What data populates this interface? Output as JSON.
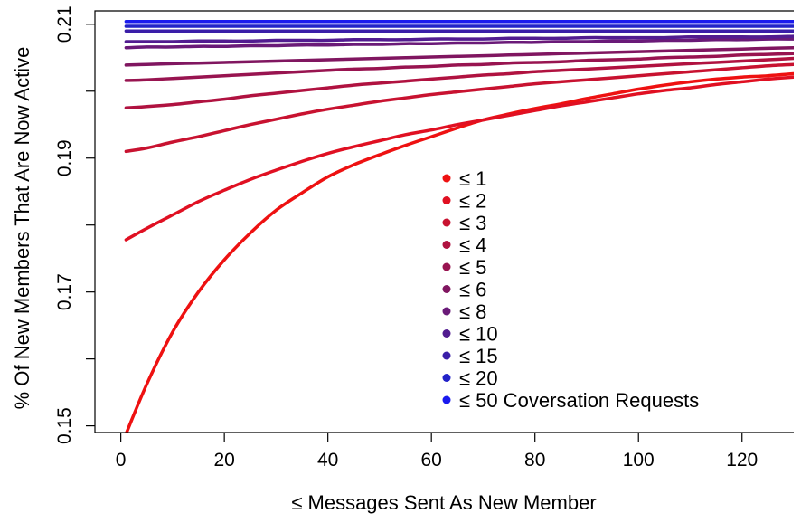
{
  "chart_data": {
    "type": "line",
    "xlabel": "≤ Messages Sent As New Member",
    "ylabel": "% Of New Members That Are Now Active",
    "xlim": [
      -5,
      130
    ],
    "ylim": [
      0.149,
      0.212
    ],
    "xticks": [
      "0",
      "20",
      "40",
      "60",
      "80",
      "100",
      "120"
    ],
    "yticks": [
      "0.15",
      "0.17",
      "0.19",
      "0.21"
    ],
    "grid": false,
    "legend_position": "center",
    "x": [
      1,
      5,
      10,
      15,
      20,
      25,
      30,
      35,
      40,
      45,
      50,
      55,
      60,
      65,
      70,
      75,
      80,
      85,
      90,
      95,
      100,
      105,
      110,
      115,
      120,
      125,
      130
    ],
    "series": [
      {
        "name": "≤ 1",
        "color": "#ee1111",
        "values": [
          0.1488,
          0.1562,
          0.164,
          0.17,
          0.1748,
          0.1788,
          0.1822,
          0.1848,
          0.1872,
          0.189,
          0.1905,
          0.1919,
          0.1932,
          0.1945,
          0.1957,
          0.1966,
          0.1974,
          0.1981,
          0.1989,
          0.1996,
          0.2003,
          0.2009,
          0.2014,
          0.2018,
          0.2021,
          0.2023,
          0.2026
        ]
      },
      {
        "name": "≤ 2",
        "color": "#e01022",
        "values": [
          0.1778,
          0.1795,
          0.1815,
          0.1835,
          0.1852,
          0.1868,
          0.1882,
          0.1895,
          0.1907,
          0.1917,
          0.1926,
          0.1935,
          0.1942,
          0.195,
          0.1957,
          0.1964,
          0.1971,
          0.1978,
          0.1984,
          0.199,
          0.1996,
          0.2001,
          0.2005,
          0.201,
          0.2014,
          0.2018,
          0.2021
        ]
      },
      {
        "name": "≤ 3",
        "color": "#c81230",
        "values": [
          0.191,
          0.1915,
          0.1924,
          0.1932,
          0.1941,
          0.195,
          0.1958,
          0.1966,
          0.1973,
          0.1979,
          0.1985,
          0.199,
          0.1995,
          0.1999,
          0.2003,
          0.2007,
          0.2011,
          0.2014,
          0.2017,
          0.202,
          0.2023,
          0.2026,
          0.2029,
          0.2032,
          0.2035,
          0.2038,
          0.204
        ]
      },
      {
        "name": "≤ 4",
        "color": "#b01240",
        "values": [
          0.1975,
          0.1977,
          0.198,
          0.1984,
          0.1988,
          0.1993,
          0.1997,
          0.2001,
          0.2005,
          0.2009,
          0.2012,
          0.2015,
          0.2018,
          0.2021,
          0.2024,
          0.2026,
          0.2029,
          0.2031,
          0.2033,
          0.2035,
          0.2037,
          0.2039,
          0.2041,
          0.2043,
          0.2045,
          0.2047,
          0.2049
        ]
      },
      {
        "name": "≤ 5",
        "color": "#981450",
        "values": [
          0.2016,
          0.2017,
          0.2019,
          0.2021,
          0.2023,
          0.2025,
          0.2027,
          0.2029,
          0.2031,
          0.2033,
          0.2034,
          0.2036,
          0.2037,
          0.2039,
          0.204,
          0.2042,
          0.2043,
          0.2044,
          0.2046,
          0.2047,
          0.2048,
          0.205,
          0.2051,
          0.2052,
          0.2054,
          0.2055,
          0.2056
        ]
      },
      {
        "name": "≤ 6",
        "color": "#801660",
        "values": [
          0.2039,
          0.204,
          0.2041,
          0.2042,
          0.2043,
          0.2044,
          0.2045,
          0.2046,
          0.2047,
          0.2048,
          0.2049,
          0.205,
          0.2051,
          0.2052,
          0.2053,
          0.2054,
          0.2055,
          0.2056,
          0.2057,
          0.2058,
          0.2059,
          0.206,
          0.2061,
          0.2062,
          0.2063,
          0.2064,
          0.2065
        ]
      },
      {
        "name": "≤ 8",
        "color": "#6a1a78",
        "values": [
          0.2065,
          0.2066,
          0.2066,
          0.2067,
          0.2067,
          0.2068,
          0.2068,
          0.2069,
          0.2069,
          0.207,
          0.207,
          0.2071,
          0.2071,
          0.2072,
          0.2072,
          0.2073,
          0.2073,
          0.2074,
          0.2074,
          0.2075,
          0.2075,
          0.2076,
          0.2076,
          0.2077,
          0.2077,
          0.2078,
          0.2078
        ]
      },
      {
        "name": "≤ 10",
        "color": "#521c90",
        "values": [
          0.2074,
          0.2074,
          0.2074,
          0.2075,
          0.2075,
          0.2075,
          0.2076,
          0.2076,
          0.2076,
          0.2077,
          0.2077,
          0.2077,
          0.2078,
          0.2078,
          0.2078,
          0.2079,
          0.2079,
          0.2079,
          0.208,
          0.208,
          0.208,
          0.208,
          0.2081,
          0.2081,
          0.2081,
          0.2081,
          0.2082
        ]
      },
      {
        "name": "≤ 15",
        "color": "#3a1ea8",
        "values": [
          0.209,
          0.209,
          0.209,
          0.209,
          0.209,
          0.209,
          0.209,
          0.209,
          0.209,
          0.209,
          0.209,
          0.209,
          0.209,
          0.209,
          0.209,
          0.209,
          0.209,
          0.209,
          0.209,
          0.209,
          0.209,
          0.209,
          0.209,
          0.209,
          0.209,
          0.209,
          0.209
        ]
      },
      {
        "name": "≤ 20",
        "color": "#2222c8",
        "values": [
          0.2097,
          0.2097,
          0.2097,
          0.2097,
          0.2097,
          0.2097,
          0.2097,
          0.2097,
          0.2097,
          0.2097,
          0.2097,
          0.2097,
          0.2097,
          0.2097,
          0.2097,
          0.2097,
          0.2097,
          0.2097,
          0.2097,
          0.2097,
          0.2097,
          0.2097,
          0.2097,
          0.2097,
          0.2097,
          0.2097,
          0.2097
        ]
      },
      {
        "name": "≤ 50 Coversation Requests",
        "color": "#1a1aee",
        "values": [
          0.2104,
          0.2104,
          0.2104,
          0.2104,
          0.2104,
          0.2104,
          0.2104,
          0.2104,
          0.2104,
          0.2104,
          0.2104,
          0.2104,
          0.2104,
          0.2104,
          0.2104,
          0.2104,
          0.2104,
          0.2104,
          0.2104,
          0.2104,
          0.2104,
          0.2104,
          0.2104,
          0.2104,
          0.2104,
          0.2104,
          0.2104
        ]
      }
    ]
  }
}
